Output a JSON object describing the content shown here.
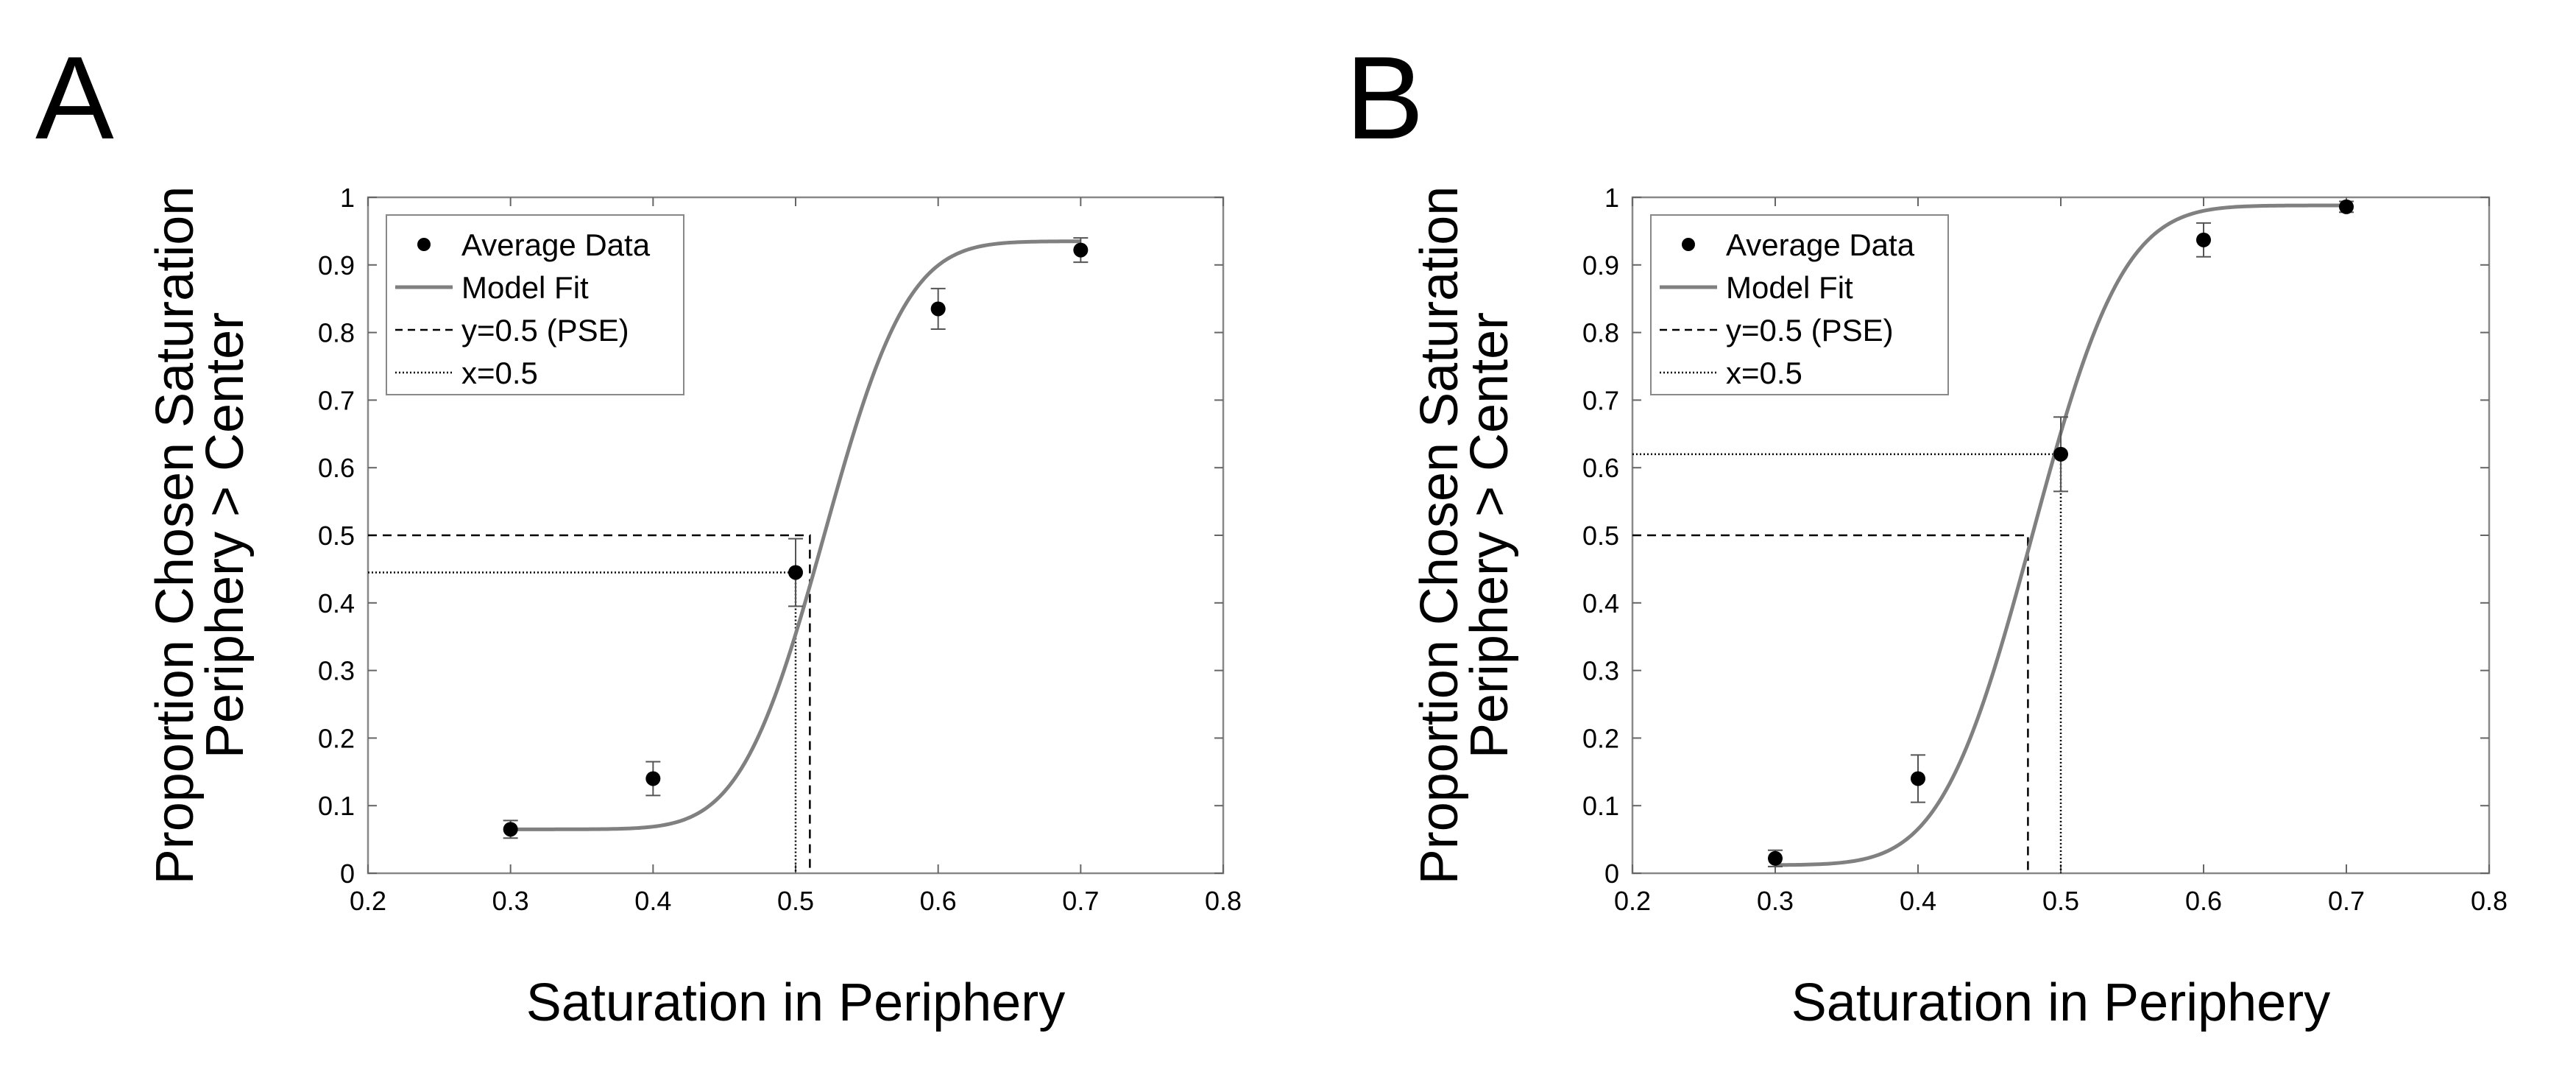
{
  "chart_data": [
    {
      "panel": "A",
      "type": "line",
      "xlabel": "Saturation in Periphery",
      "ylabel": [
        "Proportion Chosen Saturation",
        "Periphery > Center"
      ],
      "xlim": [
        0.2,
        0.8
      ],
      "ylim": [
        0,
        1
      ],
      "xticks": [
        "0.2",
        "0.3",
        "0.4",
        "0.5",
        "0.6",
        "0.7",
        "0.8"
      ],
      "yticks": [
        "0",
        "0.1",
        "0.2",
        "0.3",
        "0.4",
        "0.5",
        "0.6",
        "0.7",
        "0.8",
        "0.9",
        "1"
      ],
      "grid": false,
      "legend_position": "top-left",
      "legend": [
        "Average Data",
        "Model Fit",
        "y=0.5 (PSE)",
        "x=0.5"
      ],
      "average_data": {
        "x": [
          0.3,
          0.4,
          0.5,
          0.6,
          0.7
        ],
        "y": [
          0.065,
          0.14,
          0.445,
          0.835,
          0.922
        ],
        "err": [
          0.013,
          0.025,
          0.05,
          0.03,
          0.018
        ]
      },
      "model_fit": {
        "lower": 0.065,
        "upper": 0.935,
        "mu": 0.52,
        "sigma": 0.046
      },
      "pse": {
        "x": 0.51,
        "y": 0.5
      },
      "x05": {
        "x": 0.5,
        "y": 0.445
      }
    },
    {
      "panel": "B",
      "type": "line",
      "xlabel": "Saturation in Periphery",
      "ylabel": [
        "Proportion Chosen Saturation",
        "Periphery > Center"
      ],
      "xlim": [
        0.2,
        0.8
      ],
      "ylim": [
        0,
        1
      ],
      "xticks": [
        "0.2",
        "0.3",
        "0.4",
        "0.5",
        "0.6",
        "0.7",
        "0.8"
      ],
      "yticks": [
        "0",
        "0.1",
        "0.2",
        "0.3",
        "0.4",
        "0.5",
        "0.6",
        "0.7",
        "0.8",
        "0.9",
        "1"
      ],
      "grid": false,
      "legend_position": "top-left",
      "legend": [
        "Average Data",
        "Model Fit",
        "y=0.5 (PSE)",
        "x=0.5"
      ],
      "average_data": {
        "x": [
          0.3,
          0.4,
          0.5,
          0.6,
          0.7
        ],
        "y": [
          0.022,
          0.14,
          0.62,
          0.937,
          0.986
        ],
        "err": [
          0.012,
          0.035,
          0.055,
          0.025,
          0.008
        ]
      },
      "model_fit": {
        "lower": 0.012,
        "upper": 0.988,
        "mu": 0.48,
        "sigma": 0.05
      },
      "pse": {
        "x": 0.477,
        "y": 0.5
      },
      "x05": {
        "x": 0.5,
        "y": 0.62
      }
    }
  ]
}
